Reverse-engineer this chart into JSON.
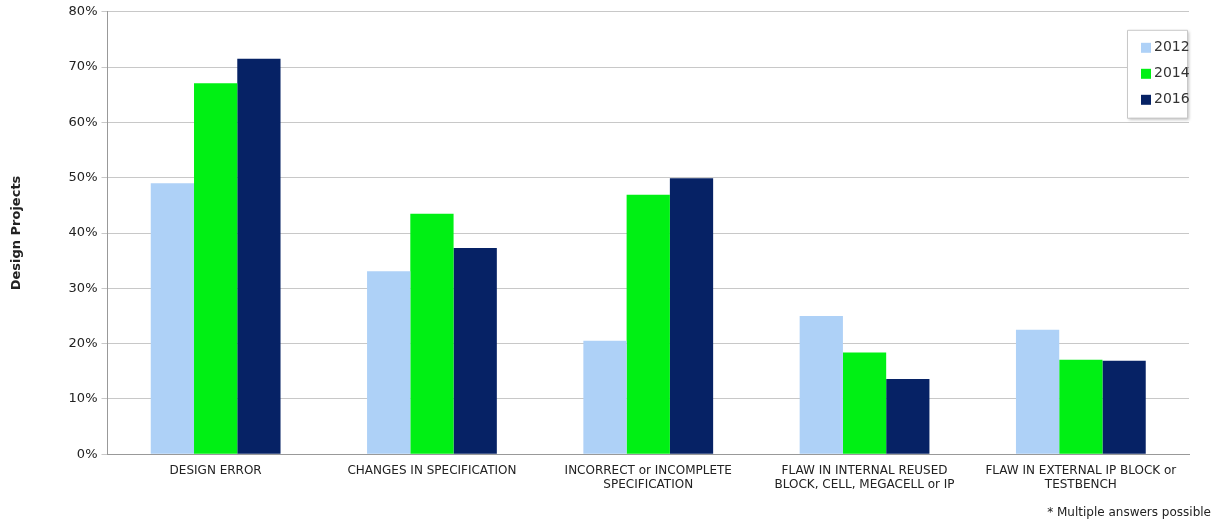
{
  "chart_data": {
    "type": "bar",
    "ylabel": "Design Projects",
    "categories": [
      "DESIGN ERROR",
      "CHANGES IN SPECIFICATION",
      "INCORRECT or INCOMPLETE SPECIFICATION",
      "FLAW IN INTERNAL REUSED BLOCK, CELL, MEGACELL or IP",
      "FLAW IN EXTERNAL IP BLOCK or TESTBENCH"
    ],
    "series": [
      {
        "name": "2012",
        "color": "#aed1f7",
        "values": [
          49,
          33.1,
          20.5,
          25,
          22.5
        ]
      },
      {
        "name": "2014",
        "color": "#00f014",
        "values": [
          67.1,
          43.5,
          46.9,
          18.4,
          17.1
        ]
      },
      {
        "name": "2016",
        "color": "#062265",
        "values": [
          71.5,
          37.3,
          49.9,
          13.6,
          16.9
        ]
      }
    ],
    "ylim": [
      0,
      80
    ],
    "yticks": [
      {
        "value": 0,
        "label": "0%"
      },
      {
        "value": 10,
        "label": "10%"
      },
      {
        "value": 20,
        "label": "20%"
      },
      {
        "value": 30,
        "label": "30%"
      },
      {
        "value": 40,
        "label": "40%"
      },
      {
        "value": 50,
        "label": "50%"
      },
      {
        "value": 60,
        "label": "60%"
      },
      {
        "value": 70,
        "label": "70%"
      },
      {
        "value": 80,
        "label": "80%"
      }
    ],
    "grid": "y",
    "legend": "top right",
    "annotations": [
      "* Multiple answers possible"
    ]
  }
}
